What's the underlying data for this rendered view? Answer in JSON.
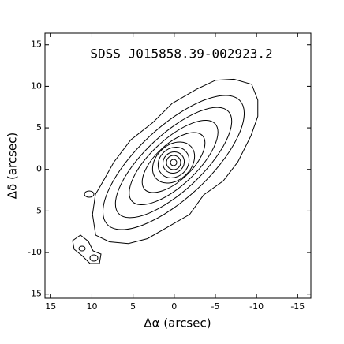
{
  "chart_data": {
    "type": "contour",
    "annotation": "SDSS J015858.39-002923.2",
    "xlabel": "Δα (arcsec)",
    "ylabel": "Δδ (arcsec)",
    "xlim": [
      15.7,
      -16.6
    ],
    "ylim": [
      -15.5,
      16.4
    ],
    "xticks": [
      15,
      10,
      5,
      0,
      -5,
      -10,
      -15
    ],
    "yticks": [
      -15,
      -10,
      -5,
      0,
      5,
      10,
      15
    ],
    "color": "#000000"
  }
}
